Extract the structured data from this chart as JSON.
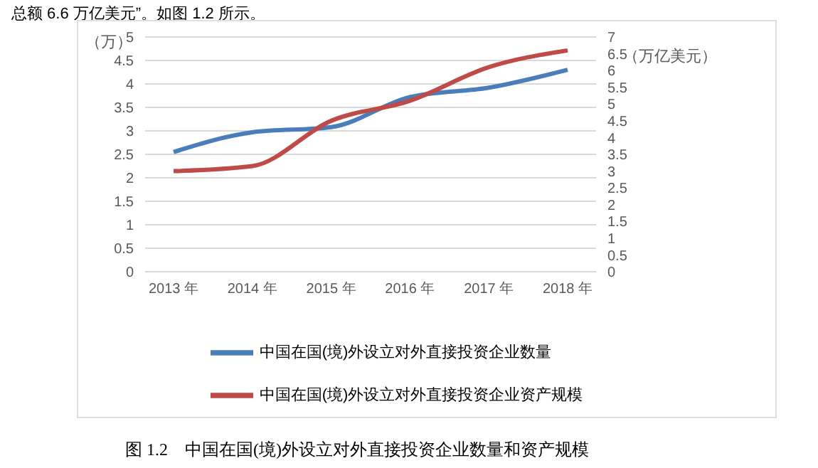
{
  "chart_data": {
    "type": "line",
    "title": "图 1.2　中国在国(境)外设立对外直接投资企业数量和资产规模",
    "annotations": [
      "总额 6.6 万亿美元”。如图 1.2 所示。"
    ],
    "ylabel": "（万）",
    "y2label": "（万亿美元）",
    "categories": [
      "2013 年",
      "2014 年",
      "2015 年",
      "2016 年",
      "2017 年",
      "2018 年"
    ],
    "series": [
      {
        "name": "中国在国(境)外设立对外直接投资企业数量",
        "color": "#4a7ebb",
        "values": [
          2.55,
          2.97,
          3.08,
          3.72,
          3.92,
          4.3
        ]
      },
      {
        "name": "中国在国(境)外设立对外直接投资企业资产规模",
        "color": "#be4b48",
        "axis": "y2",
        "values": [
          3.0,
          3.15,
          4.5,
          5.1,
          6.1,
          6.6
        ]
      }
    ],
    "ylim": [
      0,
      5
    ],
    "yticks": [
      0,
      0.5,
      1,
      1.5,
      2,
      2.5,
      3,
      3.5,
      4,
      4.5,
      5
    ],
    "y2lim": [
      0,
      7
    ],
    "y2ticks": [
      0,
      0.5,
      1,
      1.5,
      2,
      2.5,
      3,
      3.5,
      4,
      4.5,
      5,
      5.5,
      6,
      6.5,
      7
    ],
    "grid": "y",
    "legend": "bottom",
    "marker": "none",
    "line_style": "solid"
  }
}
